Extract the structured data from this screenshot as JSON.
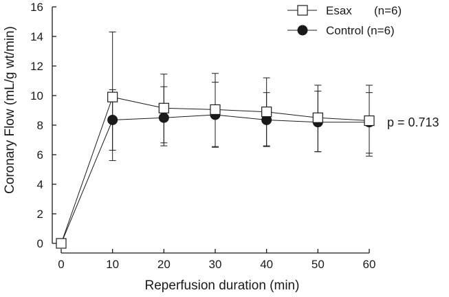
{
  "chart_data": {
    "type": "line",
    "title": "",
    "xlabel": "Reperfusion duration (min)",
    "ylabel": "Coronary Flow (mL/g wt/min)",
    "xlim": [
      0,
      60
    ],
    "ylim": [
      0,
      16
    ],
    "xticks": [
      0,
      10,
      20,
      30,
      40,
      50,
      60
    ],
    "yticks": [
      0,
      2,
      4,
      6,
      8,
      10,
      12,
      14,
      16
    ],
    "grid": false,
    "legend_position": "top-right",
    "series": [
      {
        "name": "Esax",
        "legend_label": "Esax",
        "n_label": "(n=6)",
        "marker": "open-square",
        "x": [
          0,
          10,
          20,
          30,
          40,
          50,
          60
        ],
        "values": [
          0,
          9.9,
          9.15,
          9.05,
          8.9,
          8.5,
          8.3
        ],
        "err_upper": [
          0,
          14.3,
          11.45,
          11.5,
          11.2,
          10.7,
          10.7
        ],
        "err_lower": [
          0,
          5.6,
          6.8,
          6.5,
          6.6,
          6.2,
          5.9
        ]
      },
      {
        "name": "Control",
        "legend_label": "Control (n=6)",
        "marker": "filled-circle",
        "x": [
          0,
          10,
          20,
          30,
          40,
          50,
          60
        ],
        "values": [
          0,
          8.35,
          8.5,
          8.7,
          8.35,
          8.2,
          8.2
        ],
        "err_upper": [
          0,
          10.4,
          10.6,
          10.9,
          10.2,
          10.3,
          10.2
        ],
        "err_lower": [
          0,
          6.3,
          6.6,
          6.55,
          6.55,
          6.2,
          6.1
        ]
      }
    ],
    "annotations": [
      {
        "text": "p = 0.713",
        "anchor_series": "Esax",
        "anchor_x": 60
      }
    ]
  }
}
